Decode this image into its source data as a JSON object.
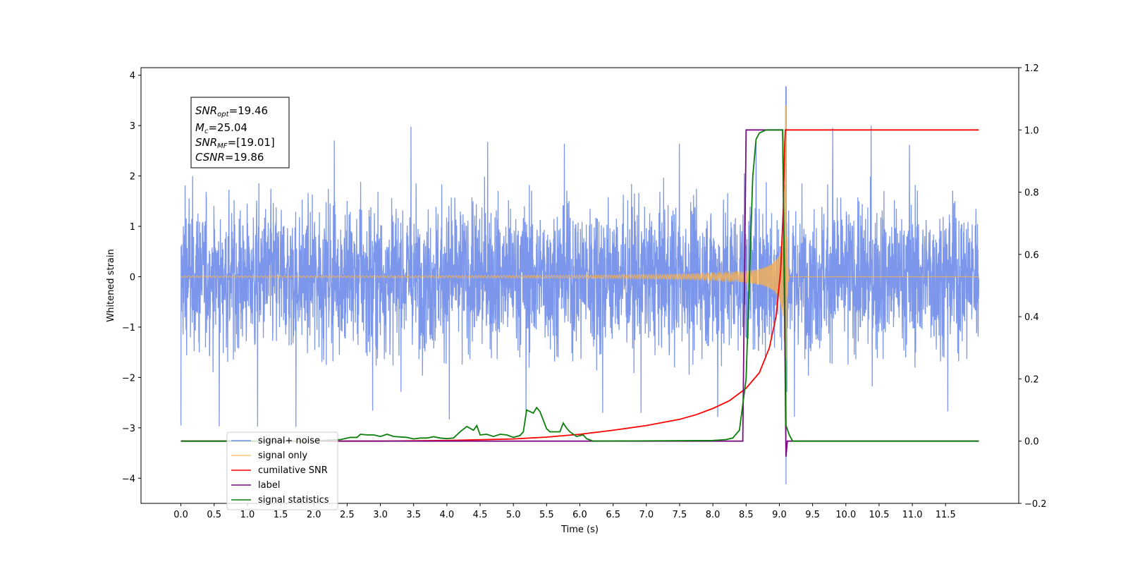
{
  "chart_data": {
    "type": "line",
    "xlabel": "Time (s)",
    "ylabel": "Whitened strain",
    "xlim": [
      -0.6,
      12.6
    ],
    "ylim": [
      -4.5,
      4.15
    ],
    "y2lim": [
      -0.2,
      1.2
    ],
    "x_ticks": [
      "0.0",
      "0.5",
      "1.0",
      "1.5",
      "2.0",
      "2.5",
      "3.0",
      "3.5",
      "4.0",
      "4.5",
      "5.0",
      "5.5",
      "6.0",
      "6.5",
      "7.0",
      "7.5",
      "8.0",
      "8.5",
      "9.0",
      "9.5",
      "10.0",
      "10.5",
      "11.0",
      "11.5"
    ],
    "y_ticks": [
      "−4",
      "−3",
      "−2",
      "−1",
      "0",
      "1",
      "2",
      "3",
      "4"
    ],
    "y2_ticks": [
      "−0.2",
      "0.0",
      "0.2",
      "0.4",
      "0.6",
      "0.8",
      "1.0",
      "1.2"
    ],
    "legend_position": "lower-left",
    "annotation": {
      "snr_opt": {
        "base": "SNR",
        "sub": "opt",
        "value": "=19.46"
      },
      "mc": {
        "base": "M",
        "sub": "c",
        "value": "=25.04"
      },
      "snr_mf": {
        "base": "SNR",
        "sub": "MF",
        "value": "=[19.01]"
      },
      "csnr": {
        "base": "CSNR",
        "sub": "",
        "value": "=19.86"
      }
    },
    "series": [
      {
        "name": "signal+ noise",
        "axis": "left",
        "color": "#4f73e3",
        "description_values": {
          "t_range": [
            0.0,
            12.0
          ],
          "typical_amplitude": 1.5,
          "max": 3.78,
          "min": -4.12
        }
      },
      {
        "name": "signal only",
        "axis": "left",
        "color": "#ffb347",
        "description_values": {
          "merger_time": 9.1,
          "peak_amplitude": 3.4
        }
      },
      {
        "name": "cumilative SNR",
        "axis": "right",
        "color": "#ff0000",
        "points": [
          [
            0.0,
            0.0
          ],
          [
            3.0,
            0.0
          ],
          [
            4.0,
            0.002
          ],
          [
            5.0,
            0.007
          ],
          [
            5.5,
            0.013
          ],
          [
            6.0,
            0.022
          ],
          [
            6.5,
            0.035
          ],
          [
            7.0,
            0.05
          ],
          [
            7.5,
            0.07
          ],
          [
            7.75,
            0.085
          ],
          [
            8.0,
            0.105
          ],
          [
            8.25,
            0.13
          ],
          [
            8.5,
            0.17
          ],
          [
            8.7,
            0.22
          ],
          [
            8.85,
            0.3
          ],
          [
            8.95,
            0.4
          ],
          [
            9.02,
            0.55
          ],
          [
            9.06,
            0.75
          ],
          [
            9.08,
            0.95
          ],
          [
            9.09,
            1.0
          ],
          [
            12.0,
            1.0
          ]
        ]
      },
      {
        "name": "label",
        "axis": "right",
        "color": "#7b0c82",
        "points": [
          [
            0.0,
            0.0
          ],
          [
            8.45,
            0.0
          ],
          [
            8.5,
            1.0
          ],
          [
            9.05,
            1.0
          ],
          [
            9.1,
            -0.05
          ],
          [
            9.12,
            0.0
          ],
          [
            12.0,
            0.0
          ]
        ]
      },
      {
        "name": "signal statistics",
        "axis": "right",
        "color": "#0a7f0a",
        "points": [
          [
            0.0,
            0.0
          ],
          [
            2.0,
            0.0
          ],
          [
            2.2,
            0.003
          ],
          [
            2.4,
            0.005
          ],
          [
            2.55,
            0.012
          ],
          [
            2.65,
            0.012
          ],
          [
            2.7,
            0.022
          ],
          [
            2.8,
            0.02
          ],
          [
            2.9,
            0.02
          ],
          [
            3.0,
            0.015
          ],
          [
            3.1,
            0.022
          ],
          [
            3.2,
            0.015
          ],
          [
            3.4,
            0.012
          ],
          [
            3.5,
            0.007
          ],
          [
            3.6,
            0.01
          ],
          [
            3.7,
            0.01
          ],
          [
            3.8,
            0.014
          ],
          [
            3.9,
            0.01
          ],
          [
            4.0,
            0.008
          ],
          [
            4.1,
            0.01
          ],
          [
            4.2,
            0.03
          ],
          [
            4.3,
            0.047
          ],
          [
            4.4,
            0.035
          ],
          [
            4.45,
            0.05
          ],
          [
            4.5,
            0.02
          ],
          [
            4.6,
            0.022
          ],
          [
            4.7,
            0.015
          ],
          [
            4.8,
            0.022
          ],
          [
            4.9,
            0.02
          ],
          [
            5.0,
            0.012
          ],
          [
            5.1,
            0.018
          ],
          [
            5.15,
            0.03
          ],
          [
            5.2,
            0.1
          ],
          [
            5.3,
            0.09
          ],
          [
            5.35,
            0.108
          ],
          [
            5.4,
            0.095
          ],
          [
            5.5,
            0.04
          ],
          [
            5.55,
            0.03
          ],
          [
            5.6,
            0.03
          ],
          [
            5.7,
            0.03
          ],
          [
            5.75,
            0.058
          ],
          [
            5.8,
            0.042
          ],
          [
            5.85,
            0.03
          ],
          [
            5.95,
            0.015
          ],
          [
            6.05,
            0.02
          ],
          [
            6.1,
            0.008
          ],
          [
            6.2,
            0.0
          ],
          [
            8.0,
            0.002
          ],
          [
            8.2,
            0.005
          ],
          [
            8.3,
            0.01
          ],
          [
            8.4,
            0.035
          ],
          [
            8.5,
            0.2
          ],
          [
            8.6,
            0.85
          ],
          [
            8.65,
            0.97
          ],
          [
            8.7,
            0.99
          ],
          [
            8.8,
            1.0
          ],
          [
            9.05,
            1.0
          ],
          [
            9.08,
            0.5
          ],
          [
            9.1,
            0.05
          ],
          [
            9.15,
            0.02
          ],
          [
            9.2,
            0.0
          ],
          [
            12.0,
            0.0
          ]
        ]
      }
    ]
  }
}
